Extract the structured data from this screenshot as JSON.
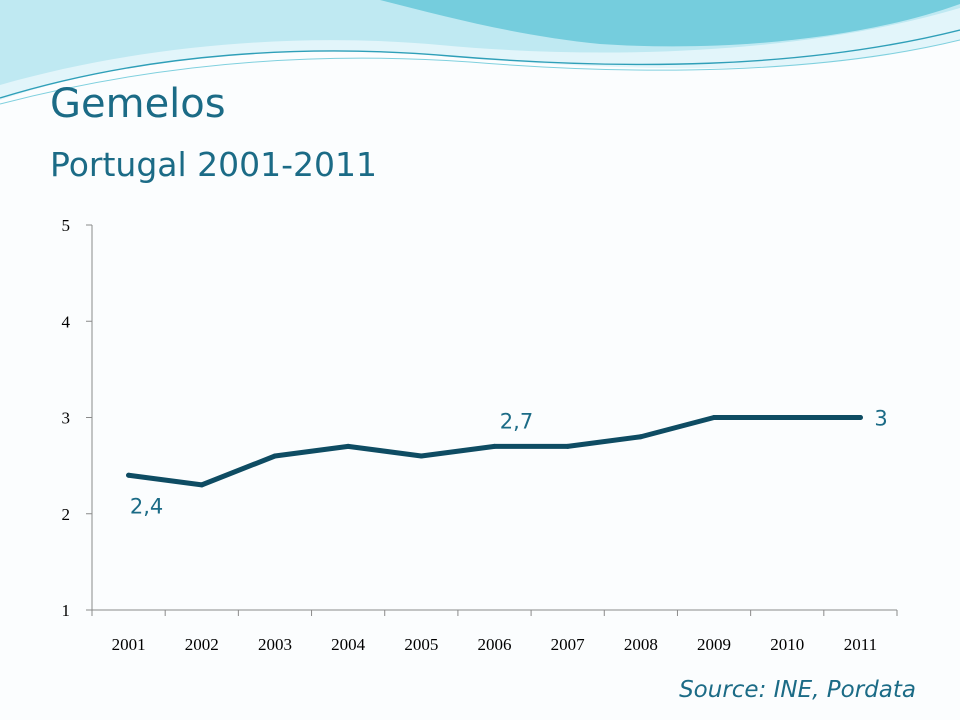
{
  "colors": {
    "accent": "#1b6b86",
    "line": "#0e4c63",
    "wave_light": "#bfe9f2",
    "wave_mid": "#5cc3d6"
  },
  "header": {
    "title": "Gemelos",
    "subtitle": "Portugal 2001-2011"
  },
  "source": "Source:  INE, Pordata",
  "chart_data": {
    "type": "line",
    "title": "",
    "xlabel": "",
    "ylabel": "",
    "categories": [
      "2001",
      "2002",
      "2003",
      "2004",
      "2005",
      "2006",
      "2007",
      "2008",
      "2009",
      "2010",
      "2011"
    ],
    "series": [
      {
        "values": [
          2.4,
          2.3,
          2.6,
          2.7,
          2.6,
          2.7,
          2.7,
          2.8,
          3.0,
          3.0,
          3.0
        ]
      }
    ],
    "ylim": [
      1,
      5
    ],
    "yticks": [
      "1",
      "2",
      "3",
      "4",
      "5"
    ],
    "grid": false,
    "legend": "none",
    "data_labels": [
      {
        "index": 0,
        "text": "2,4"
      },
      {
        "index": 5,
        "text": "2,7"
      },
      {
        "index": 10,
        "text": "3"
      }
    ]
  }
}
